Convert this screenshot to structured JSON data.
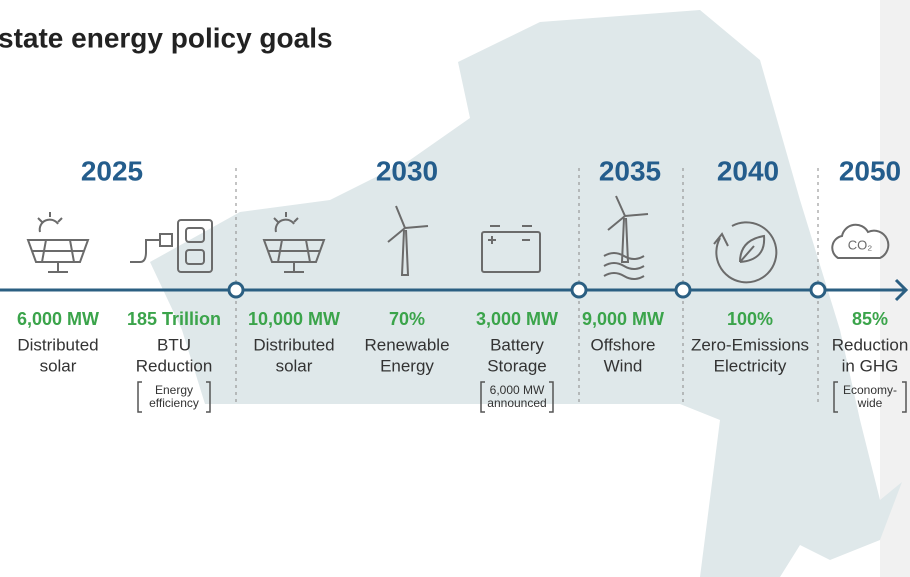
{
  "header": {
    "title": "state energy policy goals"
  },
  "years": [
    "2025",
    "2030",
    "2035",
    "2040",
    "2050"
  ],
  "goals": [
    {
      "value": "6,000 MW",
      "label": [
        "Distributed",
        "solar"
      ]
    },
    {
      "value": "185 Trillion",
      "label": [
        "BTU",
        "Reduction"
      ],
      "note": [
        "Energy",
        "efficiency"
      ]
    },
    {
      "value": "10,000 MW",
      "label": [
        "Distributed",
        "solar"
      ]
    },
    {
      "value": "70%",
      "label": [
        "Renewable",
        "Energy"
      ]
    },
    {
      "value": "3,000 MW",
      "label": [
        "Battery",
        "Storage"
      ],
      "note": [
        "6,000 MW",
        "announced"
      ]
    },
    {
      "value": "9,000 MW",
      "label": [
        "Offshore",
        "Wind"
      ]
    },
    {
      "value": "100%",
      "label": [
        "Zero-Emissions",
        "Electricity"
      ]
    },
    {
      "value": "85%",
      "label": [
        "Reduction",
        "in GHG"
      ],
      "note": [
        "Economy-",
        "wide"
      ]
    }
  ]
}
